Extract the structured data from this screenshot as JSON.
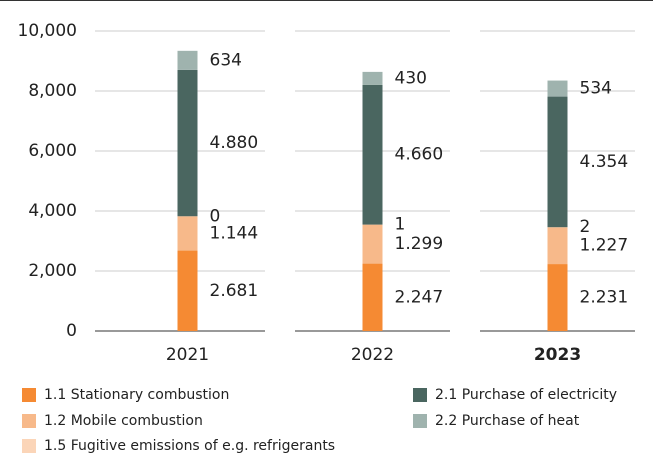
{
  "chart_data": {
    "type": "stacked_bar",
    "categories": [
      "2021",
      "2022",
      "2023"
    ],
    "highlight_index": 2,
    "ylim": [
      0,
      10000
    ],
    "yticks": [
      0,
      {
        "value": 2000,
        "label": "2,000"
      },
      {
        "value": 4000,
        "label": "4,000"
      },
      {
        "value": 6000,
        "label": "6,000"
      },
      {
        "value": 8000,
        "label": "8,000"
      },
      {
        "value": 10000,
        "label": "10,000"
      }
    ],
    "grid": true,
    "series": [
      {
        "name": "1.1 Stationary combustion",
        "color": "#f58a33",
        "values": [
          2681,
          2247,
          2231
        ],
        "value_labels": [
          "2.681",
          "2.247",
          "2.231"
        ]
      },
      {
        "name": "1.2 Mobile combustion",
        "color": "#f7b98a",
        "values": [
          1144,
          1299,
          1227
        ],
        "value_labels": [
          "1.144",
          "1.299",
          "1.227"
        ]
      },
      {
        "name": "1.5 Fugitive emissions of e.g. refrigerants",
        "color": "#fbd5b8",
        "values": [
          0,
          1,
          2
        ]
      },
      {
        "name": "2.1 Purchase of electricity",
        "color": "#4a6660",
        "values": [
          4880,
          4660,
          4354
        ],
        "value_labels": [
          "4.880",
          "4.660",
          "4.354"
        ]
      },
      {
        "name": "2.2 Purchase of heat",
        "color": "#9fb3ae",
        "values": [
          634,
          430,
          534
        ]
      }
    ]
  }
}
